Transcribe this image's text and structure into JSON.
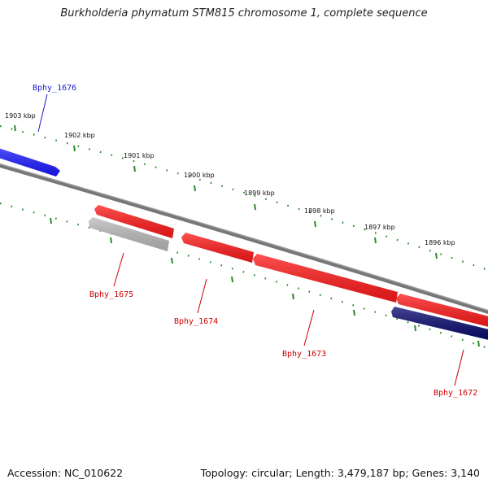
{
  "title": "Burkholderia phymatum STM815 chromosome 1, complete sequence",
  "footer": {
    "accession": "Accession: NC_010622",
    "stats": "Topology: circular; Length: 3,479,187 bp; Genes: 3,140"
  },
  "ticks": [
    "1903 kbp",
    "1902 kbp",
    "1901 kbp",
    "1900 kbp",
    "1899 kbp",
    "1898 kbp",
    "1897 kbp",
    "1896 kbp"
  ],
  "genes": [
    {
      "label": "Bphy_1676",
      "color": "#1a1aff",
      "label_color": "#1a1acc",
      "strand": "forward"
    },
    {
      "label": "Bphy_1675",
      "color": "#bbbbbb",
      "label_color": "#cc0000",
      "strand": "reverse"
    },
    {
      "label": "Bphy_1674",
      "color": "#ff1a1a",
      "label_color": "#cc0000",
      "strand": "reverse"
    },
    {
      "label": "Bphy_1673",
      "color": "#ff1a1a",
      "label_color": "#cc0000",
      "strand": "reverse"
    },
    {
      "label": "Bphy_1672",
      "color": "#0a0a70",
      "label_color": "#cc0000",
      "strand": "reverse"
    },
    {
      "label": "",
      "color": "#ff1a1a",
      "label_color": "#cc0000",
      "strand": "reverse"
    }
  ],
  "colors": {
    "backbone": "#808080",
    "tick_mark": "#2a8a2a"
  }
}
